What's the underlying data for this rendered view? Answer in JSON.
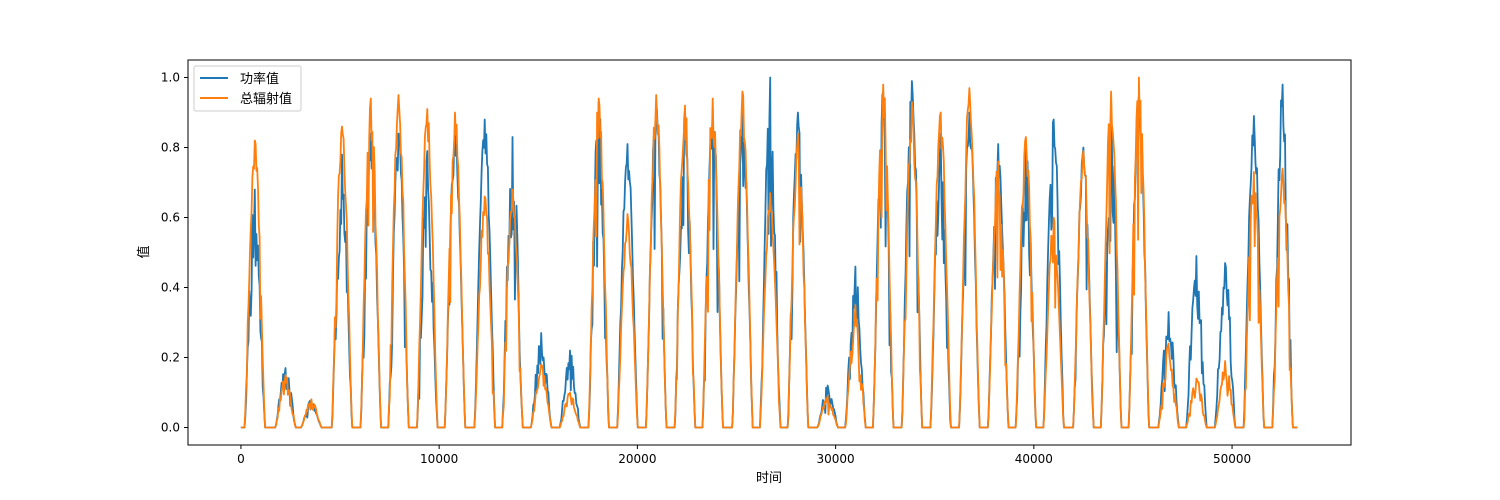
{
  "chart_data": {
    "type": "line",
    "title": "",
    "xlabel": "时间",
    "ylabel": "值",
    "xlim": [
      -2670,
      56000
    ],
    "ylim": [
      -0.05,
      1.05
    ],
    "x_ticks": [
      0,
      10000,
      20000,
      30000,
      40000,
      50000
    ],
    "y_ticks": [
      0.0,
      0.2,
      0.4,
      0.6,
      0.8,
      1.0
    ],
    "x_tick_labels": [
      "0",
      "10000",
      "20000",
      "30000",
      "40000",
      "50000"
    ],
    "y_tick_labels": [
      "0.0",
      "0.2",
      "0.4",
      "0.6",
      "0.8",
      "1.0"
    ],
    "grid": false,
    "legend_position": "top-left",
    "series": [
      {
        "name": "功率值",
        "color": "#1f77b4",
        "peaks": [
          {
            "x": 700,
            "y": 0.68
          },
          {
            "x": 2250,
            "y": 0.17
          },
          {
            "x": 3550,
            "y": 0.08
          },
          {
            "x": 5100,
            "y": 0.78
          },
          {
            "x": 6550,
            "y": 0.84
          },
          {
            "x": 7950,
            "y": 0.84
          },
          {
            "x": 9400,
            "y": 0.79
          },
          {
            "x": 10800,
            "y": 0.85
          },
          {
            "x": 12300,
            "y": 0.88
          },
          {
            "x": 13700,
            "y": 0.83
          },
          {
            "x": 15150,
            "y": 0.27
          },
          {
            "x": 16600,
            "y": 0.22
          },
          {
            "x": 18050,
            "y": 0.93
          },
          {
            "x": 19500,
            "y": 0.81
          },
          {
            "x": 20950,
            "y": 0.93
          },
          {
            "x": 22400,
            "y": 0.91
          },
          {
            "x": 23800,
            "y": 0.91
          },
          {
            "x": 25300,
            "y": 0.91
          },
          {
            "x": 26700,
            "y": 1.0
          },
          {
            "x": 28100,
            "y": 0.9
          },
          {
            "x": 29600,
            "y": 0.12
          },
          {
            "x": 31000,
            "y": 0.46
          },
          {
            "x": 32400,
            "y": 0.96
          },
          {
            "x": 33850,
            "y": 0.99
          },
          {
            "x": 35300,
            "y": 0.84
          },
          {
            "x": 36750,
            "y": 0.9
          },
          {
            "x": 38200,
            "y": 0.81
          },
          {
            "x": 39600,
            "y": 0.82
          },
          {
            "x": 41000,
            "y": 0.88
          },
          {
            "x": 42500,
            "y": 0.8
          },
          {
            "x": 43900,
            "y": 0.93
          },
          {
            "x": 45300,
            "y": 0.95
          },
          {
            "x": 46800,
            "y": 0.33
          },
          {
            "x": 48200,
            "y": 0.49
          },
          {
            "x": 49650,
            "y": 0.47
          },
          {
            "x": 51100,
            "y": 0.89
          },
          {
            "x": 52550,
            "y": 0.98
          }
        ]
      },
      {
        "name": "总辐射值",
        "color": "#ff7f0e",
        "peaks": [
          {
            "x": 700,
            "y": 0.82
          },
          {
            "x": 2250,
            "y": 0.15
          },
          {
            "x": 3550,
            "y": 0.08
          },
          {
            "x": 5100,
            "y": 0.86
          },
          {
            "x": 6550,
            "y": 0.94
          },
          {
            "x": 7950,
            "y": 0.95
          },
          {
            "x": 9400,
            "y": 0.91
          },
          {
            "x": 10800,
            "y": 0.9
          },
          {
            "x": 12300,
            "y": 0.66
          },
          {
            "x": 13700,
            "y": 0.68
          },
          {
            "x": 15150,
            "y": 0.18
          },
          {
            "x": 16600,
            "y": 0.1
          },
          {
            "x": 18050,
            "y": 0.94
          },
          {
            "x": 19500,
            "y": 0.61
          },
          {
            "x": 20950,
            "y": 0.95
          },
          {
            "x": 22400,
            "y": 0.92
          },
          {
            "x": 23800,
            "y": 0.94
          },
          {
            "x": 25300,
            "y": 0.96
          },
          {
            "x": 26700,
            "y": 0.67
          },
          {
            "x": 28100,
            "y": 0.84
          },
          {
            "x": 29600,
            "y": 0.09
          },
          {
            "x": 31000,
            "y": 0.35
          },
          {
            "x": 32400,
            "y": 0.98
          },
          {
            "x": 33850,
            "y": 0.93
          },
          {
            "x": 35300,
            "y": 0.9
          },
          {
            "x": 36750,
            "y": 0.97
          },
          {
            "x": 38200,
            "y": 0.76
          },
          {
            "x": 39600,
            "y": 0.83
          },
          {
            "x": 41000,
            "y": 0.6
          },
          {
            "x": 42500,
            "y": 0.79
          },
          {
            "x": 43900,
            "y": 0.96
          },
          {
            "x": 45300,
            "y": 1.0
          },
          {
            "x": 46800,
            "y": 0.24
          },
          {
            "x": 48200,
            "y": 0.14
          },
          {
            "x": 49650,
            "y": 0.19
          },
          {
            "x": 51100,
            "y": 0.73
          },
          {
            "x": 52550,
            "y": 0.74
          }
        ]
      }
    ],
    "x_end": 53300
  }
}
